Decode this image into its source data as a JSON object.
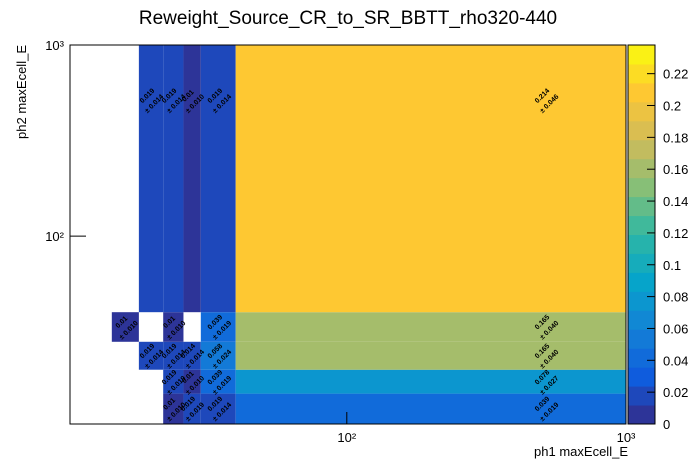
{
  "chart_data": {
    "type": "heatmap",
    "title": "Reweight_Source_CR_to_SR_BBTT_rho320-440",
    "x_label": "ph1 maxEcell_E",
    "y_label": "ph2 maxEcell_E",
    "x_log": true,
    "y_log": true,
    "xlim": [
      10.2,
      1000
    ],
    "ylim": [
      10.4,
      1000
    ],
    "xticks": [
      {
        "value": 100,
        "label": "10²"
      },
      {
        "value": 1000,
        "label": "10³"
      }
    ],
    "yticks": [
      {
        "value": 100,
        "label": "10²"
      },
      {
        "value": 1000,
        "label": "10³"
      }
    ],
    "x_edges": [
      14.4,
      18,
      22,
      26,
      30,
      40,
      1000
    ],
    "y_edges": [
      10.4,
      15,
      20,
      28,
      40,
      1000
    ],
    "values": [
      [
        null,
        null,
        0.01,
        0.019,
        0.019,
        0.039
      ],
      [
        null,
        null,
        0.019,
        0.01,
        0.039,
        0.078
      ],
      [
        null,
        0.019,
        0.019,
        0.014,
        0.058,
        0.165
      ],
      [
        0.01,
        null,
        0.01,
        null,
        0.039,
        0.165
      ],
      [
        null,
        0.019,
        0.019,
        0.01,
        0.019,
        0.214
      ]
    ],
    "errors": [
      [
        null,
        null,
        0.01,
        0.019,
        0.014,
        0.019
      ],
      [
        null,
        null,
        0.019,
        0.01,
        0.019,
        0.027
      ],
      [
        null,
        0.014,
        0.014,
        0.014,
        0.024,
        0.04
      ],
      [
        0.01,
        null,
        0.01,
        null,
        0.019,
        0.04
      ],
      [
        null,
        0.014,
        0.014,
        0.01,
        0.014,
        0.046
      ]
    ],
    "error_labels": [
      [
        null,
        null,
        "± 0.010",
        "± 0.019",
        "± 0.014",
        "± 0.019"
      ],
      [
        null,
        null,
        "± 0.019",
        "± 0.010",
        "± 0.019",
        "± 0.027"
      ],
      [
        null,
        "± 0.014",
        "± 0.014",
        "± 0.014",
        "± 0.024",
        "± 0.040"
      ],
      [
        "± 0.010",
        null,
        "± 0.010",
        null,
        "± 0.019",
        "± 0.040"
      ],
      [
        null,
        "± 0.014",
        "± 0.014",
        "± 0.010",
        "± 0.014",
        "± 0.046"
      ]
    ],
    "zlim": [
      0,
      0.238
    ],
    "zticks": [
      0,
      0.02,
      0.04,
      0.06,
      0.08,
      0.1,
      0.12,
      0.14,
      0.16,
      0.18,
      0.2,
      0.22
    ],
    "palette": [
      "#352a87",
      "#0f5cdd",
      "#1481d6",
      "#06a4ca",
      "#2eb7a4",
      "#87bf77",
      "#d1bb59",
      "#fec832",
      "#f9fb0e"
    ]
  }
}
